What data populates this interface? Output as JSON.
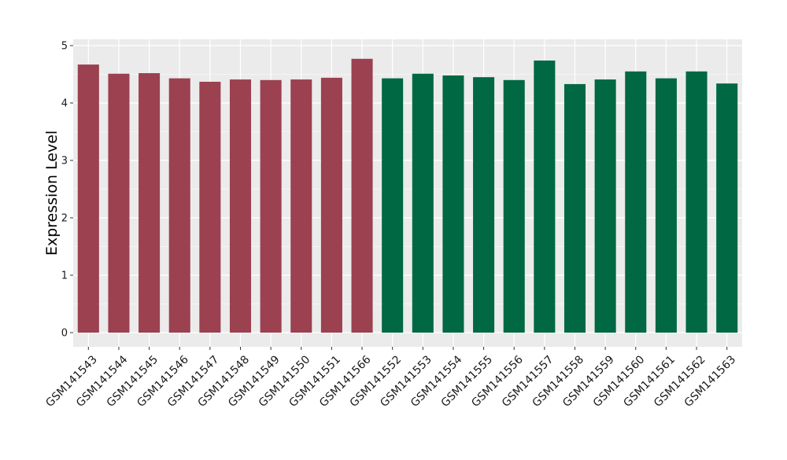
{
  "chart_data": {
    "type": "bar",
    "title": "",
    "xlabel": "",
    "ylabel": "Expression Level",
    "ylim": [
      0,
      5
    ],
    "yticks": [
      0,
      1,
      2,
      3,
      4,
      5
    ],
    "grid": true,
    "legend": "none",
    "categories": [
      "GSM141543",
      "GSM141544",
      "GSM141545",
      "GSM141546",
      "GSM141547",
      "GSM141548",
      "GSM141549",
      "GSM141550",
      "GSM141551",
      "GSM141566",
      "GSM141552",
      "GSM141553",
      "GSM141554",
      "GSM141555",
      "GSM141556",
      "GSM141557",
      "GSM141558",
      "GSM141559",
      "GSM141560",
      "GSM141561",
      "GSM141562",
      "GSM141563"
    ],
    "values": [
      4.67,
      4.51,
      4.52,
      4.43,
      4.37,
      4.41,
      4.4,
      4.41,
      4.44,
      4.77,
      4.43,
      4.51,
      4.48,
      4.45,
      4.4,
      4.74,
      4.33,
      4.41,
      4.55,
      4.43,
      4.55,
      4.34
    ],
    "groups": [
      "red",
      "red",
      "red",
      "red",
      "red",
      "red",
      "red",
      "red",
      "red",
      "red",
      "green",
      "green",
      "green",
      "green",
      "green",
      "green",
      "green",
      "green",
      "green",
      "green",
      "green",
      "green"
    ],
    "colors": {
      "red": "#9b4150",
      "green": "#006843",
      "panel": "#ebebeb",
      "grid": "#ffffff"
    }
  }
}
